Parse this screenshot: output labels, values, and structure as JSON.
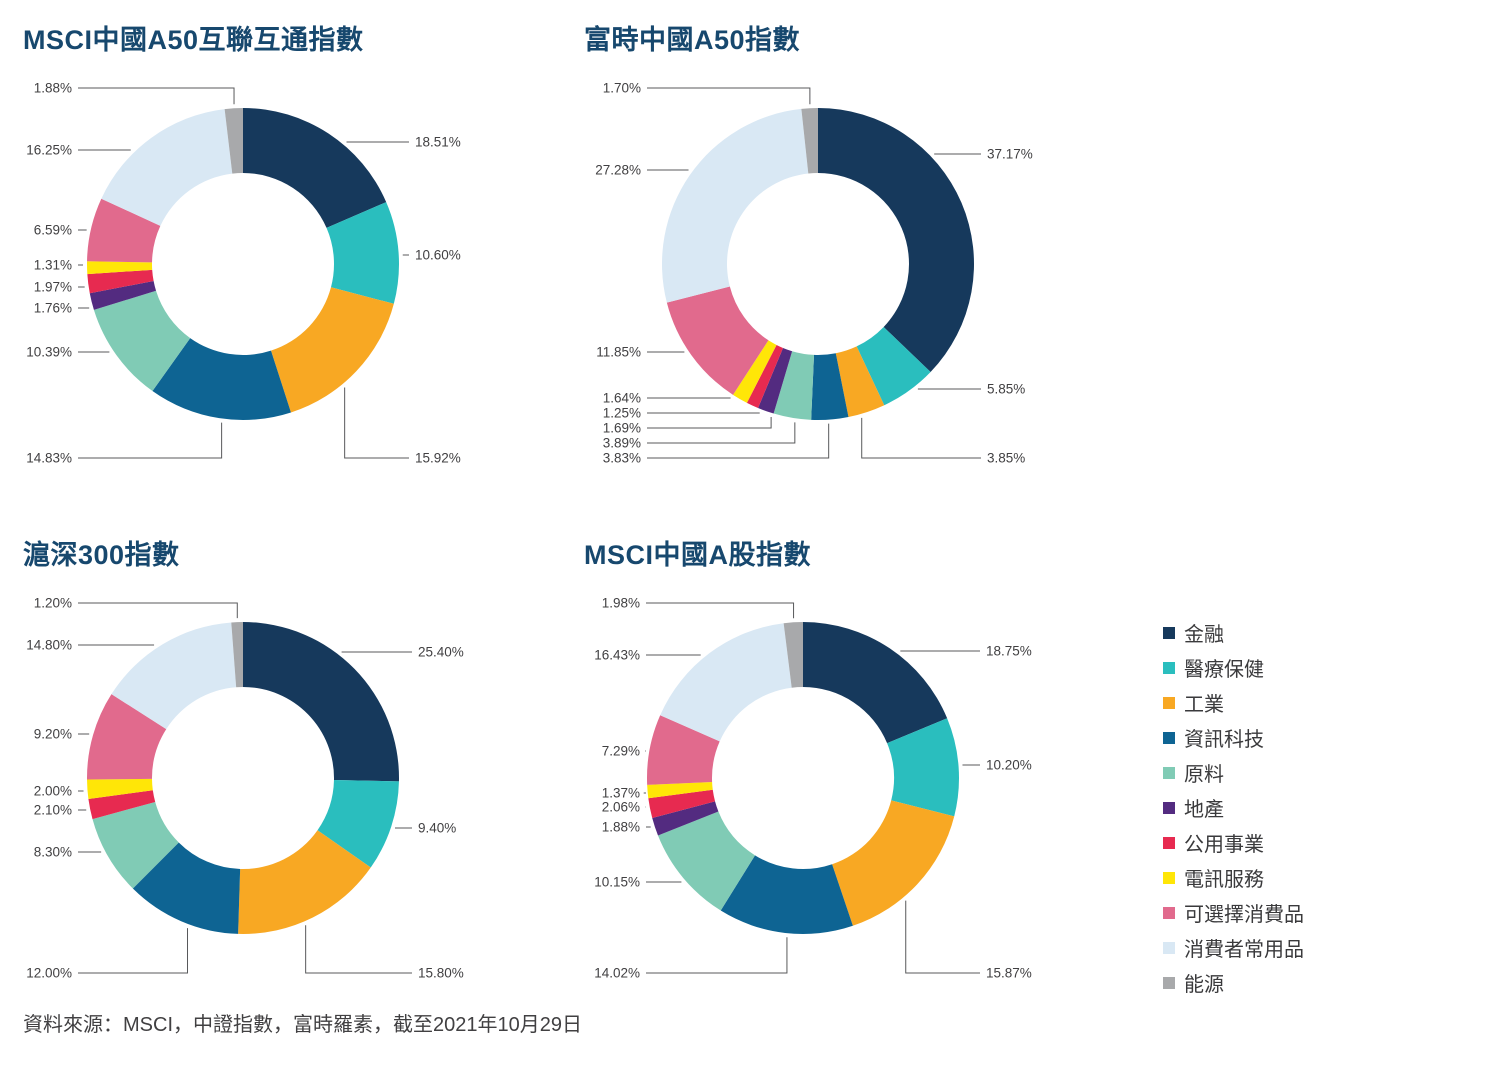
{
  "sectors": [
    {
      "name": "金融",
      "color": "#16395C"
    },
    {
      "name": "醫療保健",
      "color": "#2ABEBE"
    },
    {
      "name": "工業",
      "color": "#F8A823"
    },
    {
      "name": "資訊科技",
      "color": "#0E6493"
    },
    {
      "name": "原料",
      "color": "#80CBB5"
    },
    {
      "name": "地產",
      "color": "#532B80"
    },
    {
      "name": "公用事業",
      "color": "#E72A50"
    },
    {
      "name": "電訊服務",
      "color": "#FFE607"
    },
    {
      "name": "可選擇消費品",
      "color": "#E16A8D"
    },
    {
      "name": "消費者常用品",
      "color": "#D9E8F4"
    },
    {
      "name": "能源",
      "color": "#A8A9AB"
    }
  ],
  "chart_data": [
    {
      "type": "pie",
      "title": "MSCI中國A50互聯互通指數",
      "unit": "%",
      "legend_position": "right",
      "slices": [
        {
          "sector": "金融",
          "value": 18.51
        },
        {
          "sector": "醫療保健",
          "value": 10.6
        },
        {
          "sector": "工業",
          "value": 15.92
        },
        {
          "sector": "資訊科技",
          "value": 14.83
        },
        {
          "sector": "原料",
          "value": 10.39
        },
        {
          "sector": "地產",
          "value": 1.76
        },
        {
          "sector": "公用事業",
          "value": 1.97
        },
        {
          "sector": "電訊服務",
          "value": 1.31
        },
        {
          "sector": "可選擇消費品",
          "value": 6.59
        },
        {
          "sector": "消費者常用品",
          "value": 16.25
        },
        {
          "sector": "能源",
          "value": 1.88
        }
      ]
    },
    {
      "type": "pie",
      "title": "富時中國A50指數",
      "unit": "%",
      "legend_position": "right",
      "slices": [
        {
          "sector": "金融",
          "value": 37.17
        },
        {
          "sector": "醫療保健",
          "value": 5.85
        },
        {
          "sector": "工業",
          "value": 3.85
        },
        {
          "sector": "資訊科技",
          "value": 3.83
        },
        {
          "sector": "原料",
          "value": 3.89
        },
        {
          "sector": "地產",
          "value": 1.69
        },
        {
          "sector": "公用事業",
          "value": 1.25
        },
        {
          "sector": "電訊服務",
          "value": 1.64
        },
        {
          "sector": "可選擇消費品",
          "value": 11.85
        },
        {
          "sector": "消費者常用品",
          "value": 27.28
        },
        {
          "sector": "能源",
          "value": 1.7
        }
      ]
    },
    {
      "type": "pie",
      "title": "滬深300指數",
      "unit": "%",
      "legend_position": "right",
      "slices": [
        {
          "sector": "金融",
          "value": 25.4
        },
        {
          "sector": "醫療保健",
          "value": 9.4
        },
        {
          "sector": "工業",
          "value": 15.8
        },
        {
          "sector": "資訊科技",
          "value": 12.0
        },
        {
          "sector": "原料",
          "value": 8.3
        },
        {
          "sector": "公用事業",
          "value": 2.1
        },
        {
          "sector": "電訊服務",
          "value": 2.0
        },
        {
          "sector": "可選擇消費品",
          "value": 9.2
        },
        {
          "sector": "消費者常用品",
          "value": 14.8
        },
        {
          "sector": "能源",
          "value": 1.2
        }
      ]
    },
    {
      "type": "pie",
      "title": "MSCI中國A股指數",
      "unit": "%",
      "legend_position": "right",
      "slices": [
        {
          "sector": "金融",
          "value": 18.75
        },
        {
          "sector": "醫療保健",
          "value": 10.2
        },
        {
          "sector": "工業",
          "value": 15.87
        },
        {
          "sector": "資訊科技",
          "value": 14.02
        },
        {
          "sector": "原料",
          "value": 10.15
        },
        {
          "sector": "地產",
          "value": 1.88
        },
        {
          "sector": "公用事業",
          "value": 2.06
        },
        {
          "sector": "電訊服務",
          "value": 1.37
        },
        {
          "sector": "可選擇消費品",
          "value": 7.29
        },
        {
          "sector": "消費者常用品",
          "value": 16.43
        },
        {
          "sector": "能源",
          "value": 1.98
        }
      ]
    }
  ],
  "source": "資料來源：MSCI，中證指數，富時羅素，截至2021年10月29日"
}
